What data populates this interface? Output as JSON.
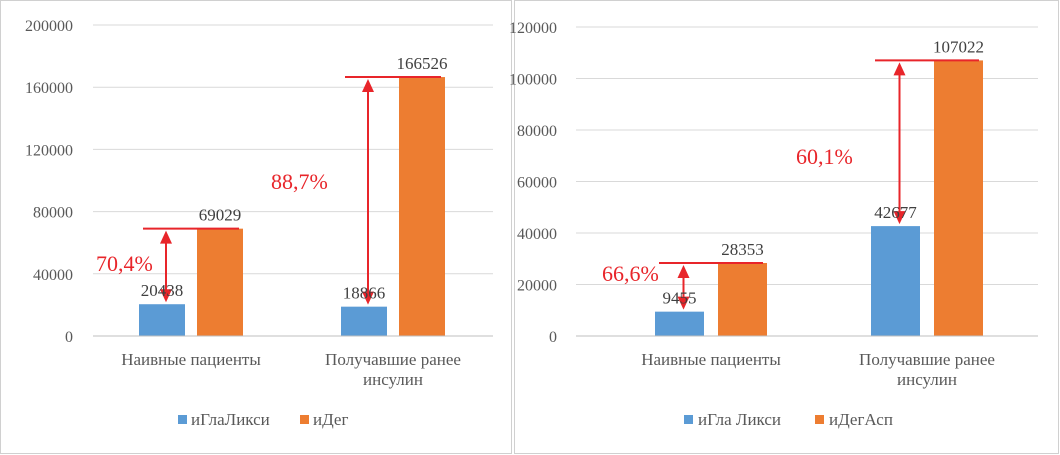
{
  "chart_data": [
    {
      "type": "bar",
      "categories": [
        [
          "Наивные пациенты"
        ],
        [
          "Получавшие ранее",
          "инсулин"
        ]
      ],
      "series": [
        {
          "name": "иГлаЛикси",
          "values": [
            20438,
            18866
          ],
          "color": "#5b9bd5"
        },
        {
          "name": "иДег",
          "values": [
            69029,
            166526
          ],
          "color": "#ed7d31"
        }
      ],
      "ylim": [
        0,
        200000
      ],
      "yticks": [
        0,
        40000,
        80000,
        120000,
        160000,
        200000
      ],
      "annotations": [
        "70,4%",
        "88,7%"
      ],
      "annotation_color": "#e8252a",
      "grid": true,
      "legend": "bottom"
    },
    {
      "type": "bar",
      "categories": [
        [
          "Наивные пациенты"
        ],
        [
          "Получавшие ранее",
          "инсулин"
        ]
      ],
      "series": [
        {
          "name": "иГла Ликси",
          "values": [
            9455,
            42677
          ],
          "color": "#5b9bd5"
        },
        {
          "name": "иДегАсп",
          "values": [
            28353,
            107022
          ],
          "color": "#ed7d31"
        }
      ],
      "ylim": [
        0,
        120000
      ],
      "yticks": [
        0,
        20000,
        40000,
        60000,
        80000,
        100000,
        120000
      ],
      "annotations": [
        "66,6%",
        "60,1%"
      ],
      "annotation_color": "#e8252a",
      "grid": true,
      "legend": "bottom"
    }
  ]
}
